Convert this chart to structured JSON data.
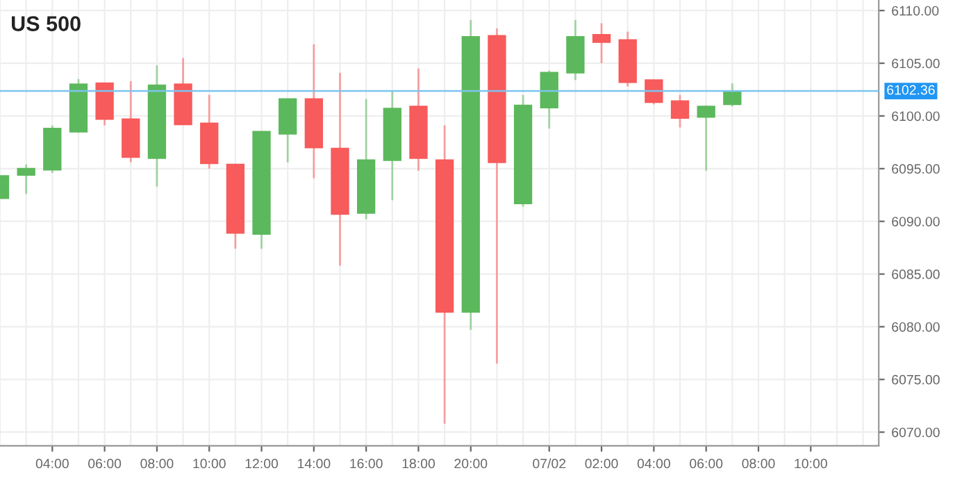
{
  "chart_data": {
    "type": "candlestick",
    "title": "US 500",
    "categories": [
      null,
      null,
      "04:00",
      null,
      "06:00",
      null,
      "08:00",
      null,
      "10:00",
      null,
      "12:00",
      null,
      "14:00",
      null,
      "16:00",
      null,
      "18:00",
      null,
      "20:00",
      null,
      null,
      "07/02",
      null,
      "02:00",
      null,
      "04:00",
      null,
      "06:00",
      null,
      "08:00",
      null,
      "10:00",
      null,
      null
    ],
    "ohlc": [
      [
        6092.2,
        6094.3,
        6092.2,
        6094.3
      ],
      [
        6094.4,
        6095.4,
        6092.6,
        6095.0
      ],
      [
        6094.9,
        6099.1,
        6094.6,
        6098.8
      ],
      [
        6098.5,
        6103.5,
        6098.4,
        6103.0
      ],
      [
        6103.1,
        6103.1,
        6099.1,
        6099.7
      ],
      [
        6099.7,
        6103.3,
        6095.6,
        6096.1
      ],
      [
        6096.0,
        6104.8,
        6093.3,
        6102.9
      ],
      [
        6103.0,
        6105.5,
        6099.2,
        6099.2
      ],
      [
        6099.3,
        6102.0,
        6095.0,
        6095.5
      ],
      [
        6095.4,
        6095.4,
        6087.4,
        6088.9
      ],
      [
        6088.8,
        6098.5,
        6087.4,
        6098.5
      ],
      [
        6098.3,
        6101.6,
        6095.6,
        6101.6
      ],
      [
        6101.6,
        6106.8,
        6094.1,
        6097.0
      ],
      [
        6096.9,
        6104.1,
        6085.8,
        6090.7
      ],
      [
        6090.8,
        6101.6,
        6090.2,
        6095.8
      ],
      [
        6095.8,
        6102.3,
        6092.0,
        6100.7
      ],
      [
        6100.9,
        6104.5,
        6094.8,
        6096.0
      ],
      [
        6095.8,
        6099.1,
        6070.8,
        6081.4
      ],
      [
        6081.4,
        6109.1,
        6079.7,
        6107.5
      ],
      [
        6107.6,
        6108.3,
        6076.5,
        6095.6
      ],
      [
        6091.7,
        6102.0,
        6091.4,
        6101.0
      ],
      [
        6100.8,
        6104.3,
        6098.8,
        6104.1
      ],
      [
        6104.1,
        6109.1,
        6103.4,
        6107.5
      ],
      [
        6107.7,
        6108.8,
        6105.0,
        6107.0
      ],
      [
        6107.2,
        6108.0,
        6102.8,
        6103.2
      ],
      [
        6103.4,
        6103.4,
        6101.1,
        6101.3
      ],
      [
        6101.4,
        6102.0,
        6098.9,
        6099.8
      ],
      [
        6099.9,
        6101.0,
        6094.8,
        6100.9
      ],
      [
        6101.1,
        6103.1,
        6100.9,
        6102.3
      ],
      null,
      null,
      null,
      null,
      null
    ],
    "colors": [
      "#5cb85c",
      "#5cb85c",
      "#5cb85c",
      "#5cb85c",
      "#f75b5b",
      "#f75b5b",
      "#5cb85c",
      "#f75b5b",
      "#f75b5b",
      "#f75b5b",
      "#5cb85c",
      "#5cb85c",
      "#f75b5b",
      "#f75b5b",
      "#5cb85c",
      "#5cb85c",
      "#f75b5b",
      "#f75b5b",
      "#5cb85c",
      "#f75b5b",
      "#5cb85c",
      "#5cb85c",
      "#5cb85c",
      "#f75b5b",
      "#f75b5b",
      "#f75b5b",
      "#f75b5b",
      "#5cb85c",
      "#5cb85c",
      null,
      null,
      null,
      null,
      null
    ],
    "ylim": [
      6068.7,
      6111.0
    ],
    "yticks": [
      {
        "value": 6070,
        "label": "6070.00"
      },
      {
        "value": 6075,
        "label": "6075.00"
      },
      {
        "value": 6080,
        "label": "6080.00"
      },
      {
        "value": 6085,
        "label": "6085.00"
      },
      {
        "value": 6090,
        "label": "6090.00"
      },
      {
        "value": 6095,
        "label": "6095.00"
      },
      {
        "value": 6100,
        "label": "6100.00"
      },
      {
        "value": 6105,
        "label": "6105.00"
      },
      {
        "value": 6110,
        "label": "6110.00"
      }
    ],
    "ref_lines": [
      {
        "axis": "y",
        "value": 6102.36,
        "label": "6102.36",
        "color": "#7cc4f0"
      }
    ],
    "grid": true
  }
}
